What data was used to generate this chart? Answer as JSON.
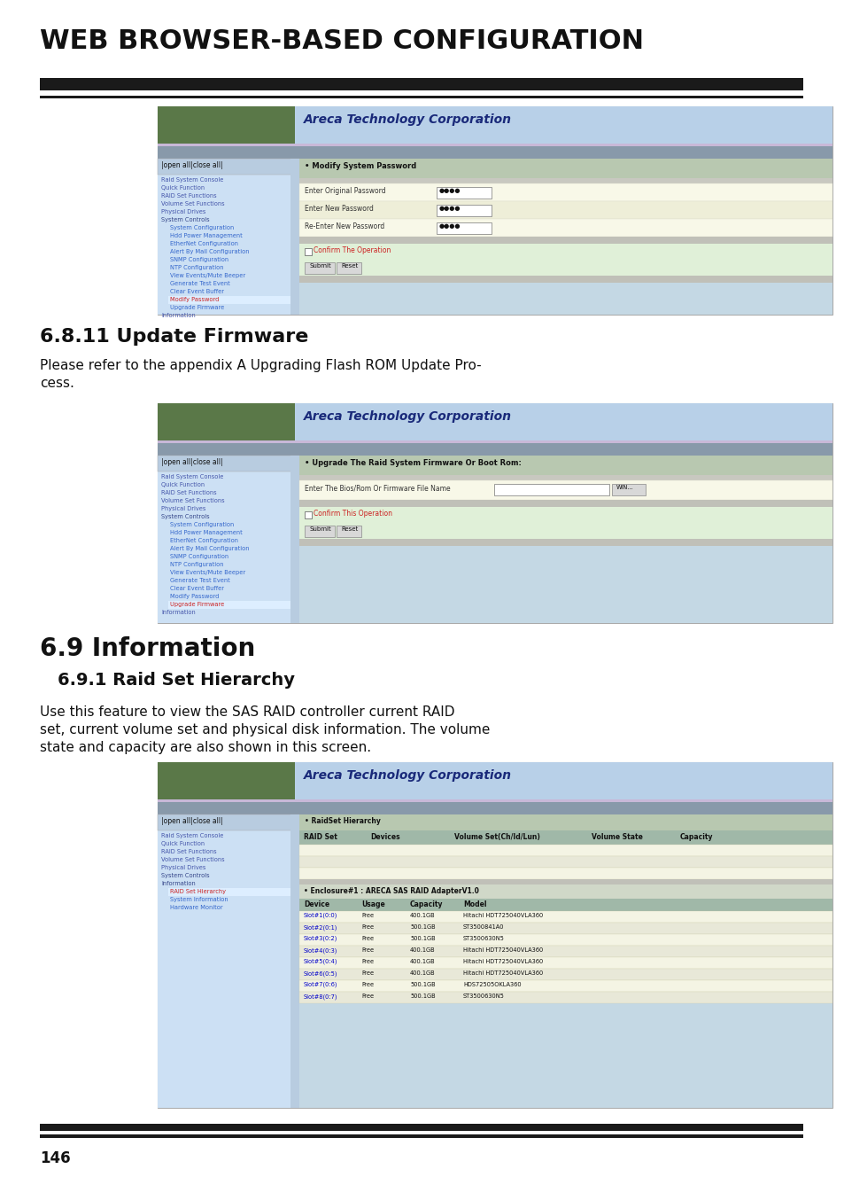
{
  "title": "WEB BROWSER-BASED CONFIGURATION",
  "page_number": "146",
  "bg_color": "#ffffff",
  "title_color": "#1a1a1a",
  "section_811_title": "6.8.11 Update Firmware",
  "section_811_text_1": "Please refer to the appendix A Upgrading Flash ROM Update Pro-",
  "section_811_text_2": "cess.",
  "section_69_title": "6.9 Information",
  "section_691_title": "6.9.1 Raid Set Hierarchy",
  "section_691_text_1": "Use this feature to view the SAS RAID controller current RAID",
  "section_691_text_2": "set, current volume set and physical disk information. The volume",
  "section_691_text_3": "state and capacity are also shown in this screen.",
  "areca_header_text": "Areca Technology Corporation",
  "nav_bg": "#cce0f0",
  "nav_header_bg": "#b8cce0",
  "content_bg": "#c8dce8",
  "header_bg": "#b0c8e0",
  "palm_bg": "#5a7848",
  "tab_bar_bg": "#8899aa",
  "title_bar_bg": "#b0c0b0",
  "form_bg1": "#f8f8e8",
  "form_bg2": "#eeeed8",
  "gray_sep": "#c0c0b8",
  "confirm_bg": "#e0f0d8",
  "btn_bg": "#d8d8d8",
  "enc_bg": "#d0d8c8",
  "tbl_hdr_bg": "#a0b8a8",
  "row_bg1": "#f4f4e4",
  "row_bg2": "#e8e8d8"
}
